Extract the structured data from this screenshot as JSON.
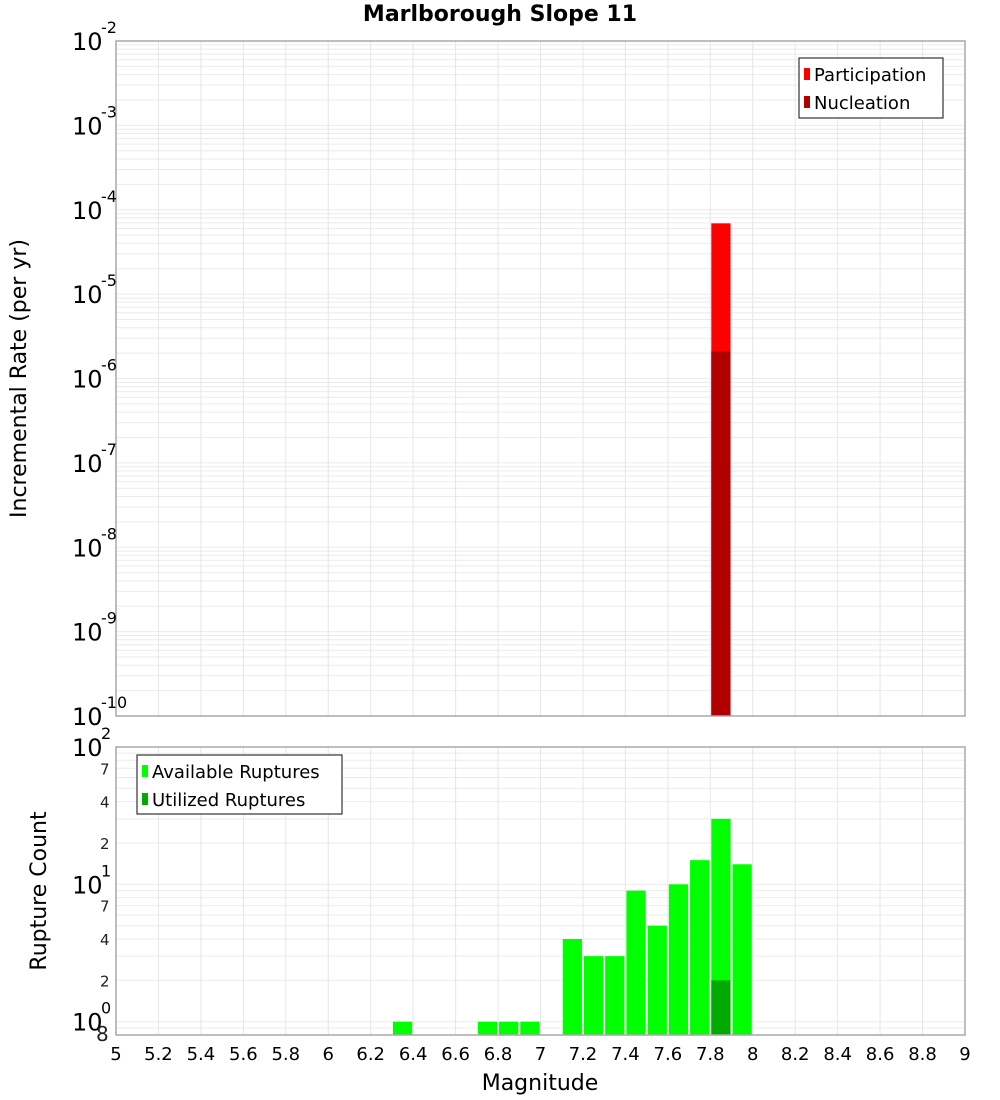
{
  "title": "Marlborough Slope 11",
  "chart_data": [
    {
      "type": "bar",
      "panel": "top",
      "title": "Marlborough Slope 11",
      "xlabel": "Magnitude",
      "ylabel": "Incremental Rate (per yr)",
      "yscale": "log",
      "ylim": [
        1e-10,
        0.01
      ],
      "xlim": [
        5,
        9
      ],
      "grid": true,
      "legend_position": "top-right",
      "legend": [
        "Participation",
        "Nucleation"
      ],
      "ytick_labels": [
        "10^-2",
        "10^-3",
        "10^-4",
        "10^-5",
        "10^-6",
        "10^-7",
        "10^-8",
        "10^-9",
        "10^-10"
      ],
      "series": [
        {
          "name": "Participation",
          "color": "#ff0000",
          "x": [
            7.85
          ],
          "values": [
            6.9e-05
          ]
        },
        {
          "name": "Nucleation",
          "color": "#b00000",
          "x": [
            7.85
          ],
          "values": [
            2.1e-06
          ]
        }
      ]
    },
    {
      "type": "bar",
      "panel": "bottom",
      "xlabel": "Magnitude",
      "ylabel": "Rupture Count",
      "yscale": "log",
      "ylim": [
        0.8,
        100
      ],
      "xlim": [
        5,
        9
      ],
      "grid": true,
      "legend_position": "top-left",
      "legend": [
        "Available Ruptures",
        "Utilized Ruptures"
      ],
      "ytick_labels": [
        "10^2",
        "7",
        "4",
        "2",
        "10^1",
        "7",
        "4",
        "2",
        "10^0",
        "8"
      ],
      "xtick_labels": [
        "5",
        "5.2",
        "5.4",
        "5.6",
        "5.8",
        "6",
        "6.2",
        "6.4",
        "6.6",
        "6.8",
        "7",
        "7.2",
        "7.4",
        "7.6",
        "7.8",
        "8",
        "8.2",
        "8.4",
        "8.6",
        "8.8",
        "9"
      ],
      "series": [
        {
          "name": "Available Ruptures",
          "color": "#00ff00",
          "x": [
            6.35,
            6.75,
            6.85,
            6.95,
            7.15,
            7.25,
            7.35,
            7.45,
            7.55,
            7.65,
            7.75,
            7.85,
            7.95
          ],
          "values": [
            1,
            1,
            1,
            1,
            4,
            3,
            3,
            9,
            5,
            10,
            15,
            30,
            14
          ]
        },
        {
          "name": "Utilized Ruptures",
          "color": "#00aa00",
          "x": [
            7.85
          ],
          "values": [
            2
          ]
        }
      ]
    }
  ],
  "top_panel": {
    "ylabel": "Incremental Rate (per yr)",
    "legend": [
      {
        "label": "Participation",
        "color": "#ff0000"
      },
      {
        "label": "Nucleation",
        "color": "#b00000"
      }
    ]
  },
  "bottom_panel": {
    "ylabel": "Rupture Count",
    "xlabel": "Magnitude",
    "legend": [
      {
        "label": "Available Ruptures",
        "color": "#00ff00"
      },
      {
        "label": "Utilized Ruptures",
        "color": "#00aa00"
      }
    ]
  }
}
